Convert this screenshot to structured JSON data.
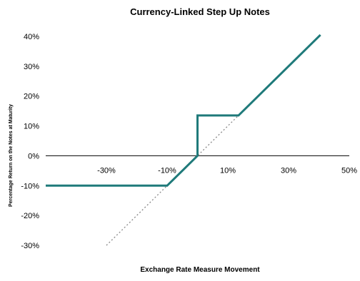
{
  "chart_data": {
    "type": "line",
    "title": "Currency-Linked Step Up Notes",
    "xlabel": "Exchange Rate Measure Movement",
    "ylabel": "Percentage Return on the Notes at Maturity",
    "xlim": [
      -50,
      50
    ],
    "ylim": [
      -30,
      40
    ],
    "x_ticks": [
      -30,
      -10,
      10,
      30,
      50
    ],
    "x_tick_labels": [
      "-30%",
      "-10%",
      "10%",
      "30%",
      "50%"
    ],
    "y_ticks": [
      40,
      30,
      20,
      10,
      0,
      -10,
      -20,
      -30
    ],
    "y_tick_labels": [
      "40%",
      "30%",
      "20%",
      "10%",
      "0%",
      "-10%",
      "-20%",
      "-30%"
    ],
    "grid": false,
    "legend": "none",
    "series": [
      {
        "style": "solid",
        "color": "#1f7a7a",
        "x": [
          -50,
          -10,
          0,
          0,
          13.5,
          40.5
        ],
        "y": [
          -10,
          -10,
          0,
          13.5,
          13.5,
          40.5
        ]
      },
      {
        "style": "dotted",
        "color": "#888888",
        "x": [
          -30,
          40
        ],
        "y": [
          -30,
          40
        ]
      }
    ]
  }
}
